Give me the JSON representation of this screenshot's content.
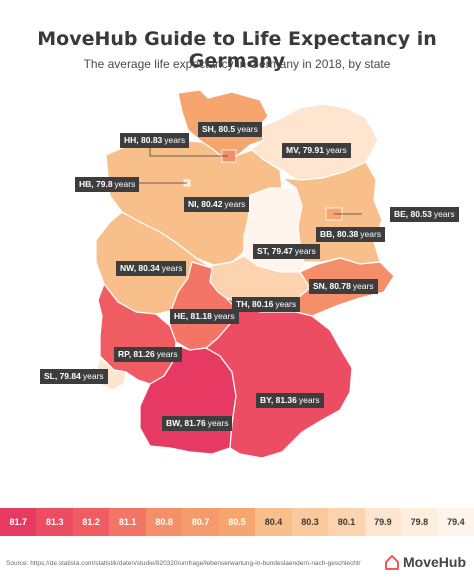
{
  "title": "MoveHub Guide to Life Expectancy in Germany",
  "subtitle": "The average life expectancy in Germany in 2018, by state",
  "states": [
    {
      "code": "SH",
      "value": "80.5",
      "unit": "years",
      "color": "#f6a56e"
    },
    {
      "code": "HH",
      "value": "80.83",
      "unit": "years",
      "color": "#f48f6a"
    },
    {
      "code": "MV",
      "value": "79.91",
      "unit": "years",
      "color": "#fde5d0"
    },
    {
      "code": "HB",
      "value": "79.8",
      "unit": "years",
      "color": "#fde5d0"
    },
    {
      "code": "NI",
      "value": "80.42",
      "unit": "years",
      "color": "#f9bf8b"
    },
    {
      "code": "BE",
      "value": "80.53",
      "unit": "years",
      "color": "#f6a56e"
    },
    {
      "code": "BB",
      "value": "80.38",
      "unit": "years",
      "color": "#f9bf8b"
    },
    {
      "code": "ST",
      "value": "79.47",
      "unit": "years",
      "color": "#fff5ec"
    },
    {
      "code": "NW",
      "value": "80.34",
      "unit": "years",
      "color": "#f9bf8b"
    },
    {
      "code": "SN",
      "value": "80.78",
      "unit": "years",
      "color": "#f48f6a"
    },
    {
      "code": "TH",
      "value": "80.16",
      "unit": "years",
      "color": "#fbd3ae"
    },
    {
      "code": "HE",
      "value": "81.18",
      "unit": "years",
      "color": "#f27565"
    },
    {
      "code": "RP",
      "value": "81.26",
      "unit": "years",
      "color": "#ef5d63"
    },
    {
      "code": "SL",
      "value": "79.84",
      "unit": "years",
      "color": "#fde5d0"
    },
    {
      "code": "BY",
      "value": "81.36",
      "unit": "years",
      "color": "#ec4d63"
    },
    {
      "code": "BW",
      "value": "81.76",
      "unit": "years",
      "color": "#e63a63"
    }
  ],
  "legend": [
    {
      "label": "81.7",
      "color": "#e63a63"
    },
    {
      "label": "81.3",
      "color": "#ec4d63"
    },
    {
      "label": "81.2",
      "color": "#ef5d63"
    },
    {
      "label": "81.1",
      "color": "#f27565"
    },
    {
      "label": "80.8",
      "color": "#f48f6a"
    },
    {
      "label": "80.7",
      "color": "#f59a6c"
    },
    {
      "label": "80.5",
      "color": "#f6a56e"
    },
    {
      "label": "80.4",
      "color": "#f9bf8b"
    },
    {
      "label": "80.3",
      "color": "#fac99c"
    },
    {
      "label": "80.1",
      "color": "#fbd3ae"
    },
    {
      "label": "79.9",
      "color": "#fde5d0"
    },
    {
      "label": "79.8",
      "color": "#feeede"
    },
    {
      "label": "79.4",
      "color": "#fff5ec"
    }
  ],
  "source": "Source: https://de.statista.com/statistik/daten/studie/820320/umfrage/lebenserwartung-in-bundeslaendern-nach-geschlecht/",
  "logo": {
    "text": "MoveHub",
    "icon": "house-icon",
    "color": "#f05a5a"
  }
}
